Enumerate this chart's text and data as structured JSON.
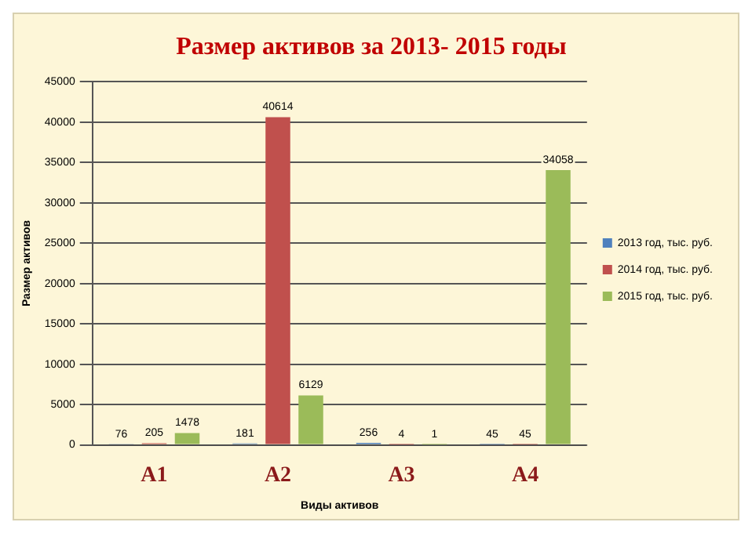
{
  "chart_data": {
    "type": "bar",
    "title": "Размер активов за 2013- 2015 годы",
    "xlabel": "Виды активов",
    "ylabel": "Размер активов",
    "categories": [
      "A1",
      "A2",
      "A3",
      "A4"
    ],
    "series": [
      {
        "name": "2013 год, тыс. руб.",
        "color": "#4f81bd",
        "values": [
          76,
          181,
          256,
          45
        ]
      },
      {
        "name": "2014 год, тыс. руб.",
        "color": "#c0504d",
        "values": [
          205,
          40614,
          4,
          45
        ]
      },
      {
        "name": "2015 год, тыс. руб.",
        "color": "#9bbb59",
        "values": [
          1478,
          6129,
          1,
          34058
        ]
      }
    ],
    "ylim": [
      0,
      45000
    ],
    "yticks": [
      0,
      5000,
      10000,
      15000,
      20000,
      25000,
      30000,
      35000,
      40000,
      45000
    ],
    "grid": "y",
    "legend": "right",
    "data_labels": true
  }
}
